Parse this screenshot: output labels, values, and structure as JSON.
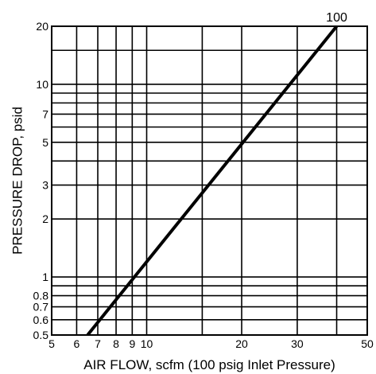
{
  "chart_data": {
    "type": "line",
    "xlabel": "AIR FLOW, scfm (100 psig Inlet Pressure)",
    "ylabel": "PRESSURE DROP, psid",
    "x_scale": "log",
    "y_scale": "log",
    "xlim": [
      5,
      50
    ],
    "ylim": [
      0.5,
      20
    ],
    "x_ticks": [
      5,
      6,
      7,
      8,
      9,
      10,
      20,
      30,
      50
    ],
    "x_tick_labels": [
      "5",
      "6",
      "7",
      "8",
      "9",
      "10",
      "20",
      "30",
      "50"
    ],
    "y_ticks": [
      0.5,
      0.6,
      0.7,
      0.8,
      1,
      2,
      3,
      5,
      7,
      10,
      20
    ],
    "y_tick_labels": [
      "0.5",
      "0.6",
      "0.7",
      "0.8",
      "1",
      "2",
      "3",
      "5",
      "7",
      "10",
      "20"
    ],
    "x_grid": [
      6,
      7,
      8,
      9,
      10,
      15,
      20,
      30,
      40
    ],
    "y_grid": [
      0.6,
      0.7,
      0.8,
      0.9,
      1,
      2,
      3,
      4,
      5,
      6,
      7,
      8,
      9,
      10,
      15
    ],
    "grid": true,
    "legend": "none",
    "series": [
      {
        "label": "100",
        "x": [
          6.5,
          40
        ],
        "y": [
          0.5,
          20
        ]
      }
    ]
  }
}
